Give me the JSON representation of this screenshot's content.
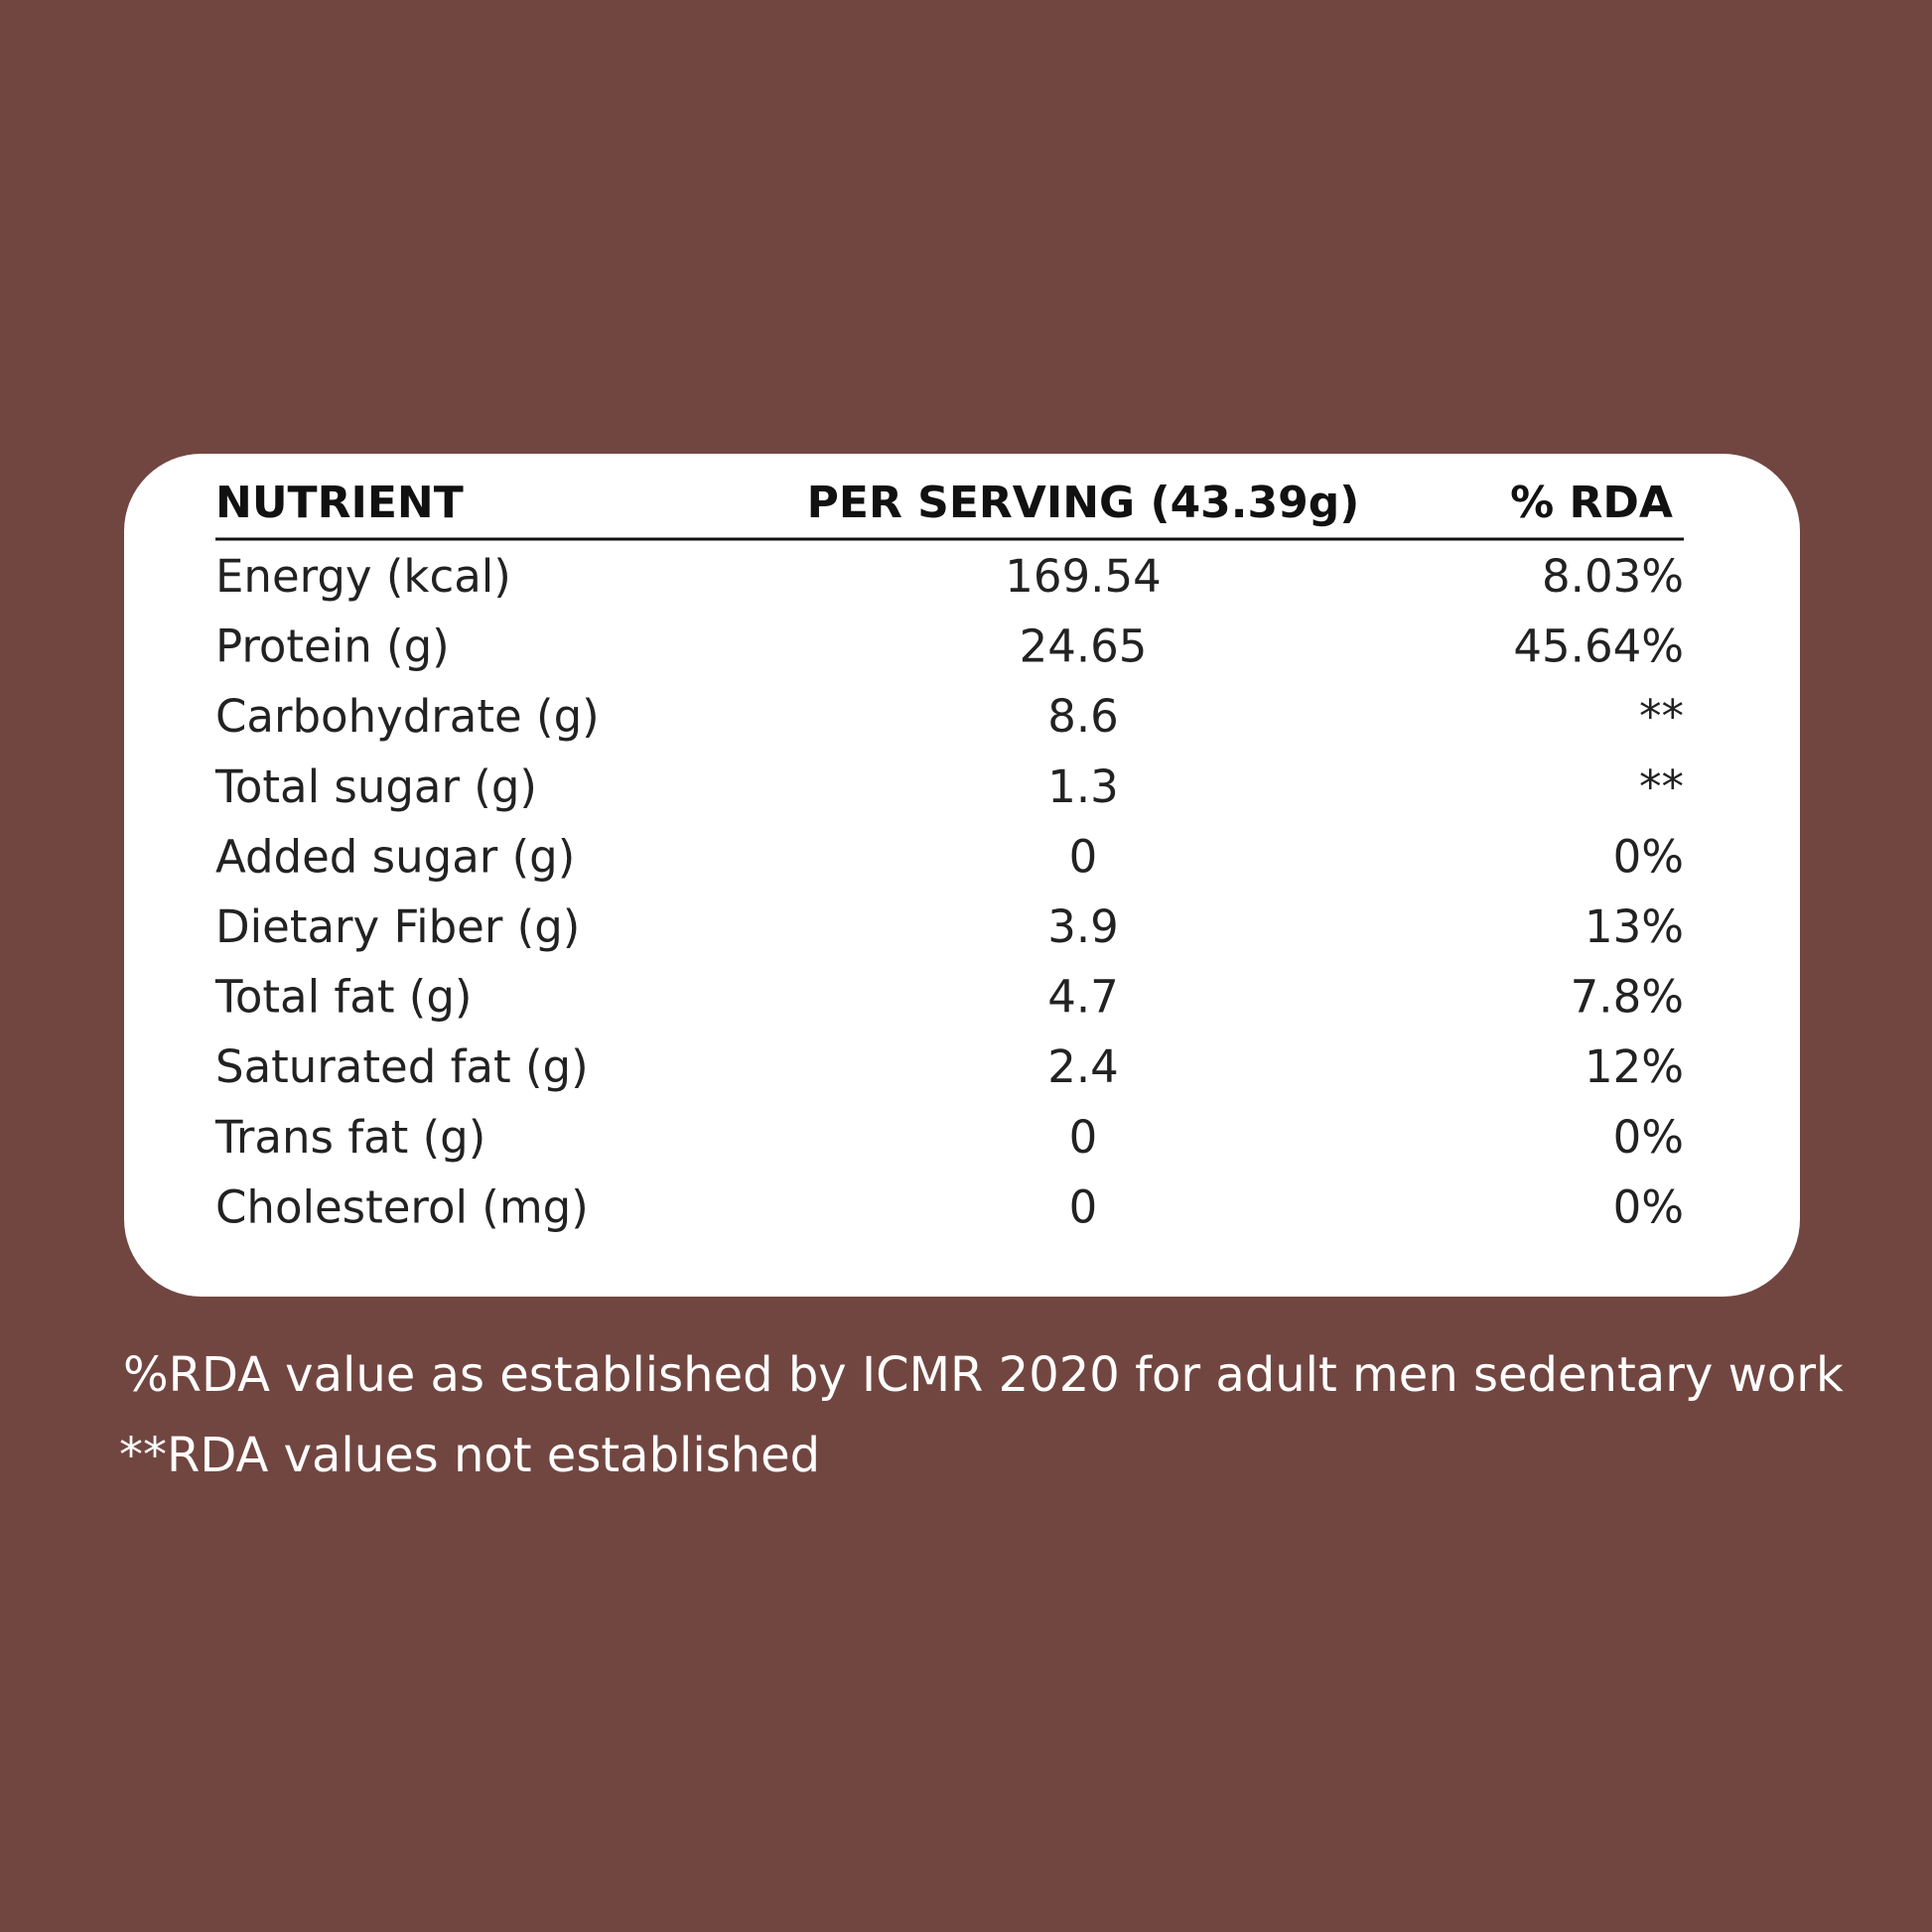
{
  "table": {
    "headers": [
      "NUTRIENT",
      "PER SERVING (43.39g)",
      "% RDA"
    ],
    "rows": [
      [
        "Energy (kcal)",
        "169.54",
        "8.03%"
      ],
      [
        "Protein (g)",
        "24.65",
        "45.64%"
      ],
      [
        "Carbohydrate (g)",
        "8.6",
        "**"
      ],
      [
        "Total sugar (g)",
        "1.3",
        "**"
      ],
      [
        "Added sugar (g)",
        "0",
        "0%"
      ],
      [
        "Dietary Fiber (g)",
        "3.9",
        "13%"
      ],
      [
        "Total fat (g)",
        "4.7",
        "7.8%"
      ],
      [
        "Saturated fat (g)",
        "2.4",
        "12%"
      ],
      [
        "Trans fat (g)",
        "0",
        "0%"
      ],
      [
        "Cholesterol (mg)",
        "0",
        "0%"
      ]
    ]
  },
  "footnotes": [
    "%RDA value as established by ICMR 2020 for adult men sedentary work",
    "**RDA values not established"
  ]
}
